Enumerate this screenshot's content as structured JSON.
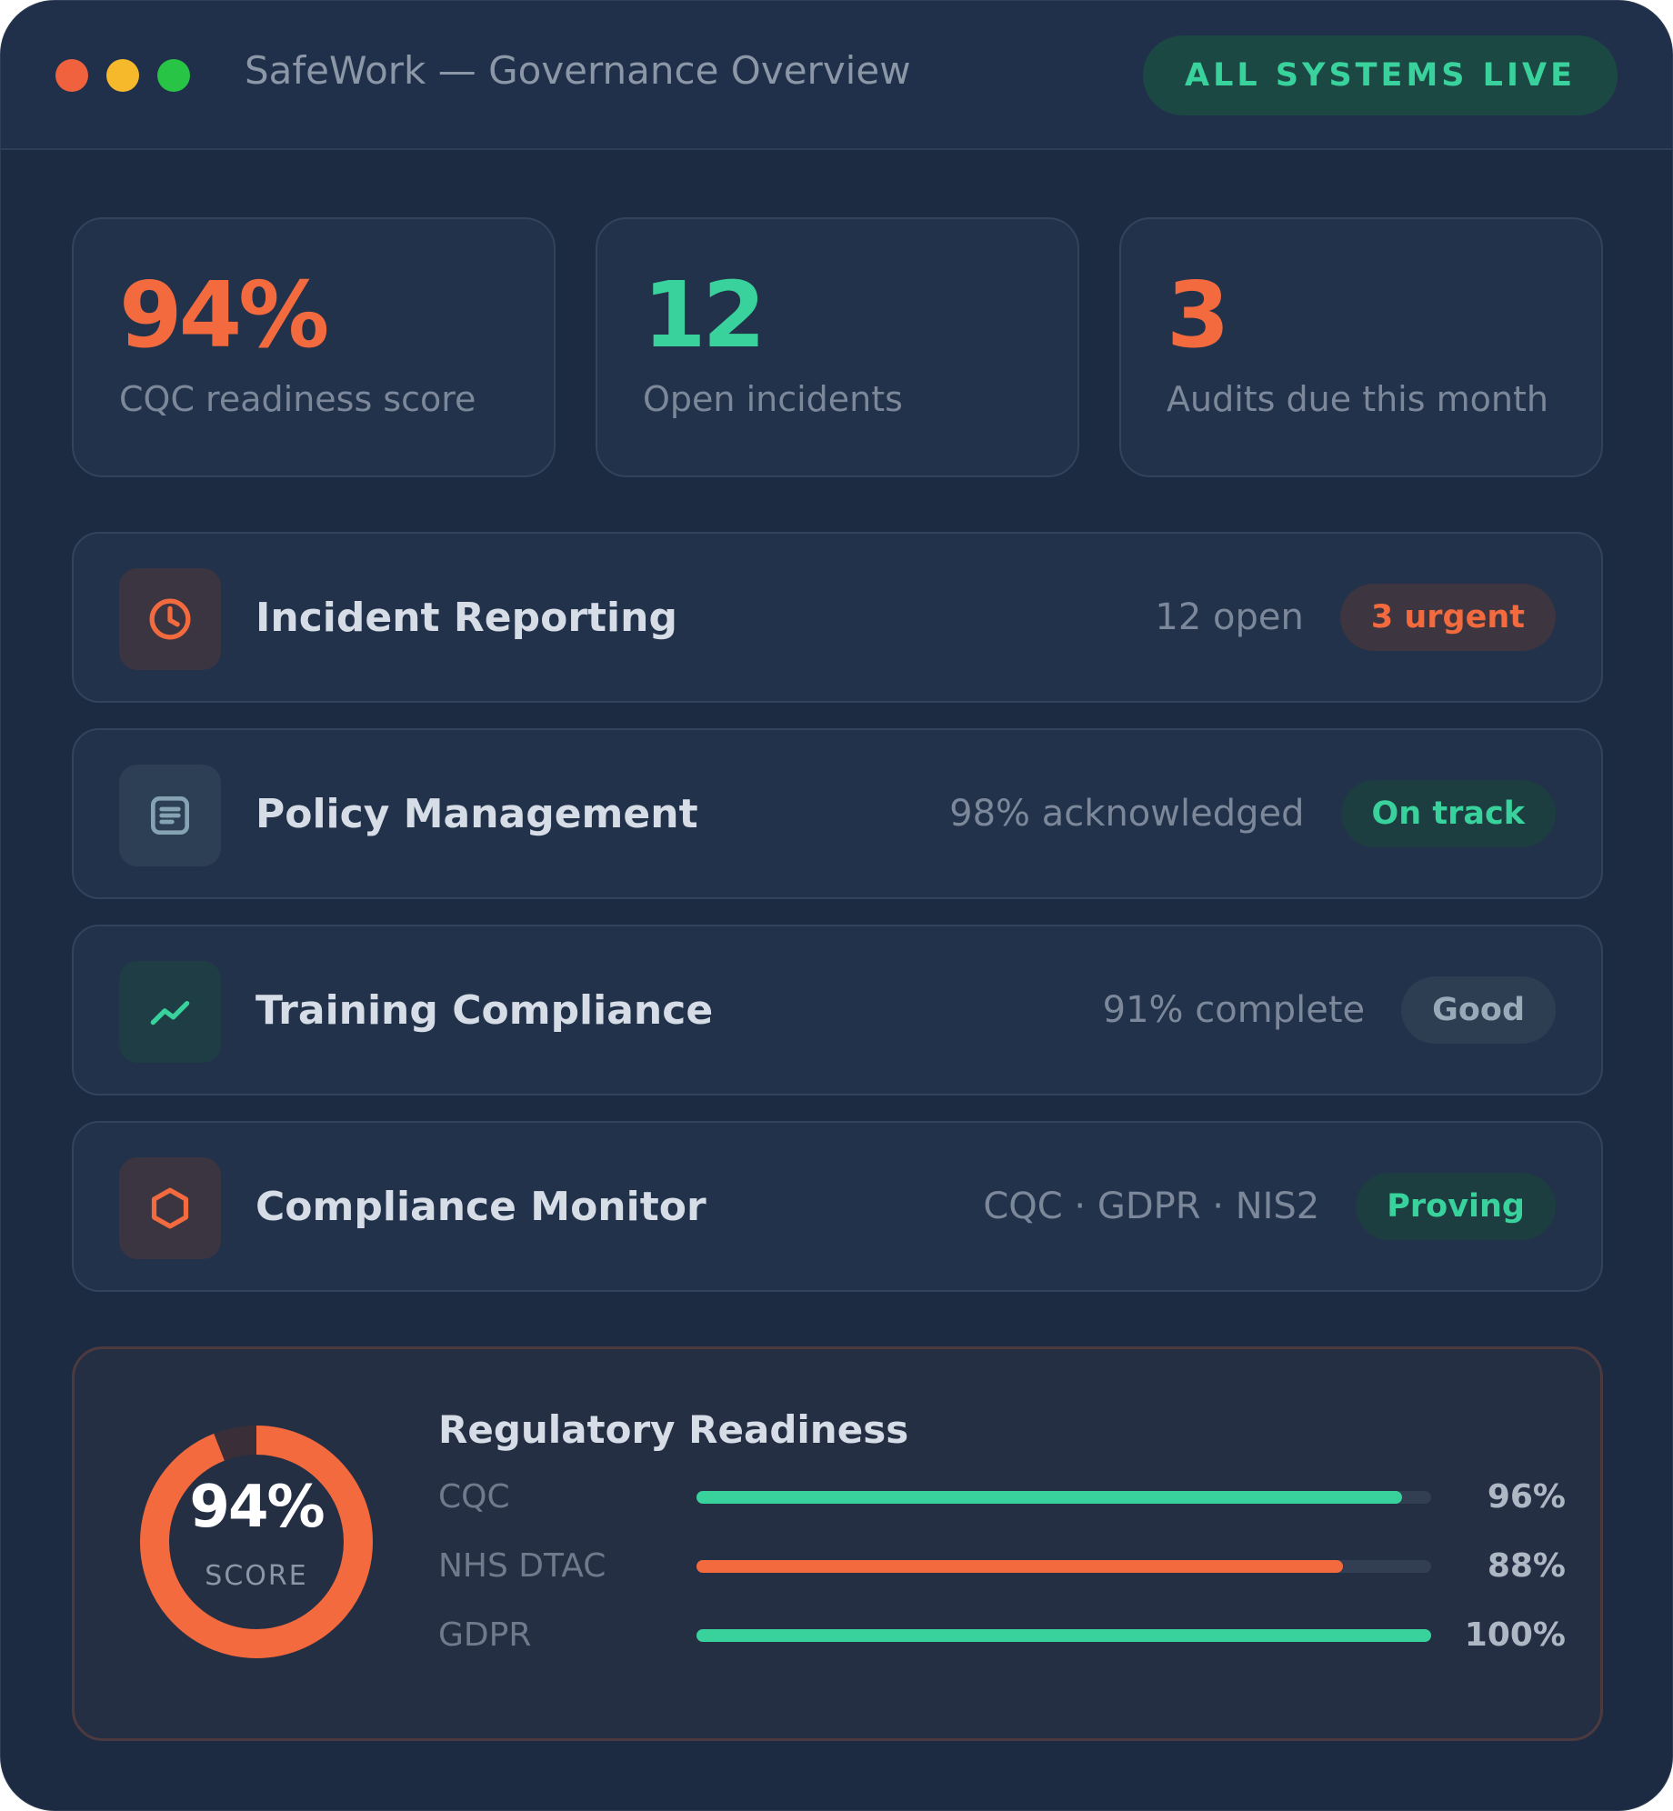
{
  "window": {
    "title": "SafeWork — Governance Overview",
    "status": "ALL SYSTEMS LIVE"
  },
  "stats": [
    {
      "value": "94%",
      "label": "CQC readiness score",
      "color": "#f26a3e"
    },
    {
      "value": "12",
      "label": "Open incidents",
      "color": "#39d29c"
    },
    {
      "value": "3",
      "label": "Audits due this month",
      "color": "#f26a3e"
    }
  ],
  "modules": [
    {
      "title": "Incident Reporting",
      "meta": "12 open",
      "badge": "3 urgent",
      "icon": "clock-icon"
    },
    {
      "title": "Policy Management",
      "meta": "98% acknowledged",
      "badge": "On track",
      "icon": "document-icon"
    },
    {
      "title": "Training Compliance",
      "meta": "91% complete",
      "badge": "Good",
      "icon": "trend-icon"
    },
    {
      "title": "Compliance Monitor",
      "meta": "CQC · GDPR · NIS2",
      "badge": "Proving",
      "icon": "hexagon-icon"
    }
  ],
  "readiness": {
    "title": "Regulatory Readiness",
    "score": "94%",
    "score_value": 94,
    "score_label": "SCORE",
    "items": [
      {
        "name": "CQC",
        "value": 96,
        "pct": "96%",
        "color": "#39d29c"
      },
      {
        "name": "NHS DTAC",
        "value": 88,
        "pct": "88%",
        "color": "#f26a3e"
      },
      {
        "name": "GDPR",
        "value": 100,
        "pct": "100%",
        "color": "#39d29c"
      }
    ]
  },
  "colors": {
    "accent_orange": "#f26a3e",
    "accent_green": "#39d29c",
    "background": "#1c2b42",
    "card": "#22324b"
  }
}
